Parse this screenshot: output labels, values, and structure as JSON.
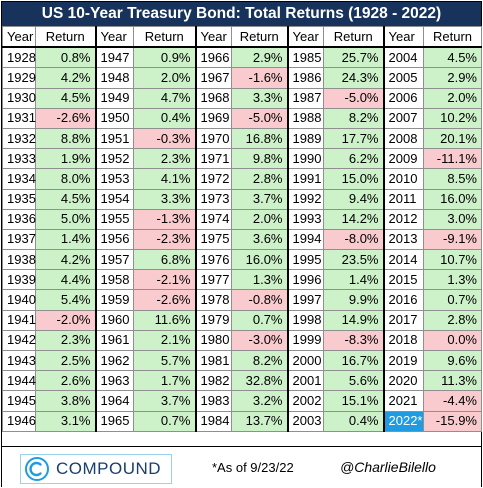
{
  "title": "US 10-Year Treasury Bond: Total Returns (1928 - 2022)",
  "headers": [
    "Year",
    "Return"
  ],
  "columns": [
    [
      [
        "1928",
        "0.8%"
      ],
      [
        "1929",
        "4.2%"
      ],
      [
        "1930",
        "4.5%"
      ],
      [
        "1931",
        "-2.6%"
      ],
      [
        "1932",
        "8.8%"
      ],
      [
        "1933",
        "1.9%"
      ],
      [
        "1934",
        "8.0%"
      ],
      [
        "1935",
        "4.5%"
      ],
      [
        "1936",
        "5.0%"
      ],
      [
        "1937",
        "1.4%"
      ],
      [
        "1938",
        "4.2%"
      ],
      [
        "1939",
        "4.4%"
      ],
      [
        "1940",
        "5.4%"
      ],
      [
        "1941",
        "-2.0%"
      ],
      [
        "1942",
        "2.3%"
      ],
      [
        "1943",
        "2.5%"
      ],
      [
        "1944",
        "2.6%"
      ],
      [
        "1945",
        "3.8%"
      ],
      [
        "1946",
        "3.1%"
      ]
    ],
    [
      [
        "1947",
        "0.9%"
      ],
      [
        "1948",
        "2.0%"
      ],
      [
        "1949",
        "4.7%"
      ],
      [
        "1950",
        "0.4%"
      ],
      [
        "1951",
        "-0.3%"
      ],
      [
        "1952",
        "2.3%"
      ],
      [
        "1953",
        "4.1%"
      ],
      [
        "1954",
        "3.3%"
      ],
      [
        "1955",
        "-1.3%"
      ],
      [
        "1956",
        "-2.3%"
      ],
      [
        "1957",
        "6.8%"
      ],
      [
        "1958",
        "-2.1%"
      ],
      [
        "1959",
        "-2.6%"
      ],
      [
        "1960",
        "11.6%"
      ],
      [
        "1961",
        "2.1%"
      ],
      [
        "1962",
        "5.7%"
      ],
      [
        "1963",
        "1.7%"
      ],
      [
        "1964",
        "3.7%"
      ],
      [
        "1965",
        "0.7%"
      ]
    ],
    [
      [
        "1966",
        "2.9%"
      ],
      [
        "1967",
        "-1.6%"
      ],
      [
        "1968",
        "3.3%"
      ],
      [
        "1969",
        "-5.0%"
      ],
      [
        "1970",
        "16.8%"
      ],
      [
        "1971",
        "9.8%"
      ],
      [
        "1972",
        "2.8%"
      ],
      [
        "1973",
        "3.7%"
      ],
      [
        "1974",
        "2.0%"
      ],
      [
        "1975",
        "3.6%"
      ],
      [
        "1976",
        "16.0%"
      ],
      [
        "1977",
        "1.3%"
      ],
      [
        "1978",
        "-0.8%"
      ],
      [
        "1979",
        "0.7%"
      ],
      [
        "1980",
        "-3.0%"
      ],
      [
        "1981",
        "8.2%"
      ],
      [
        "1982",
        "32.8%"
      ],
      [
        "1983",
        "3.2%"
      ],
      [
        "1984",
        "13.7%"
      ]
    ],
    [
      [
        "1985",
        "25.7%"
      ],
      [
        "1986",
        "24.3%"
      ],
      [
        "1987",
        "-5.0%"
      ],
      [
        "1988",
        "8.2%"
      ],
      [
        "1989",
        "17.7%"
      ],
      [
        "1990",
        "6.2%"
      ],
      [
        "1991",
        "15.0%"
      ],
      [
        "1992",
        "9.4%"
      ],
      [
        "1993",
        "14.2%"
      ],
      [
        "1994",
        "-8.0%"
      ],
      [
        "1995",
        "23.5%"
      ],
      [
        "1996",
        "1.4%"
      ],
      [
        "1997",
        "9.9%"
      ],
      [
        "1998",
        "14.9%"
      ],
      [
        "1999",
        "-8.3%"
      ],
      [
        "2000",
        "16.7%"
      ],
      [
        "2001",
        "5.6%"
      ],
      [
        "2002",
        "15.1%"
      ],
      [
        "2003",
        "0.4%"
      ]
    ],
    [
      [
        "2004",
        "4.5%"
      ],
      [
        "2005",
        "2.9%"
      ],
      [
        "2006",
        "2.0%"
      ],
      [
        "2007",
        "10.2%"
      ],
      [
        "2008",
        "20.1%"
      ],
      [
        "2009",
        "-11.1%"
      ],
      [
        "2010",
        "8.5%"
      ],
      [
        "2011",
        "16.0%"
      ],
      [
        "2012",
        "3.0%"
      ],
      [
        "2013",
        "-9.1%"
      ],
      [
        "2014",
        "10.7%"
      ],
      [
        "2015",
        "1.3%"
      ],
      [
        "2016",
        "0.7%"
      ],
      [
        "2017",
        "2.8%"
      ],
      [
        "2018",
        "0.0%"
      ],
      [
        "2019",
        "9.6%"
      ],
      [
        "2020",
        "11.3%"
      ],
      [
        "2021",
        "-4.4%"
      ],
      [
        "2022*",
        "-15.9%"
      ]
    ]
  ],
  "highlight_year": "2022*",
  "colors": {
    "header_bg": "#17335c",
    "positive": "#cdf2c9",
    "negative": "#f9cbcf",
    "highlight": "#1e9be1"
  },
  "footer": {
    "logo_text": "COMPOUND",
    "logo_icon": "compound-logo-icon",
    "note": "*As of 9/23/22",
    "handle": "@CharlieBilello"
  }
}
